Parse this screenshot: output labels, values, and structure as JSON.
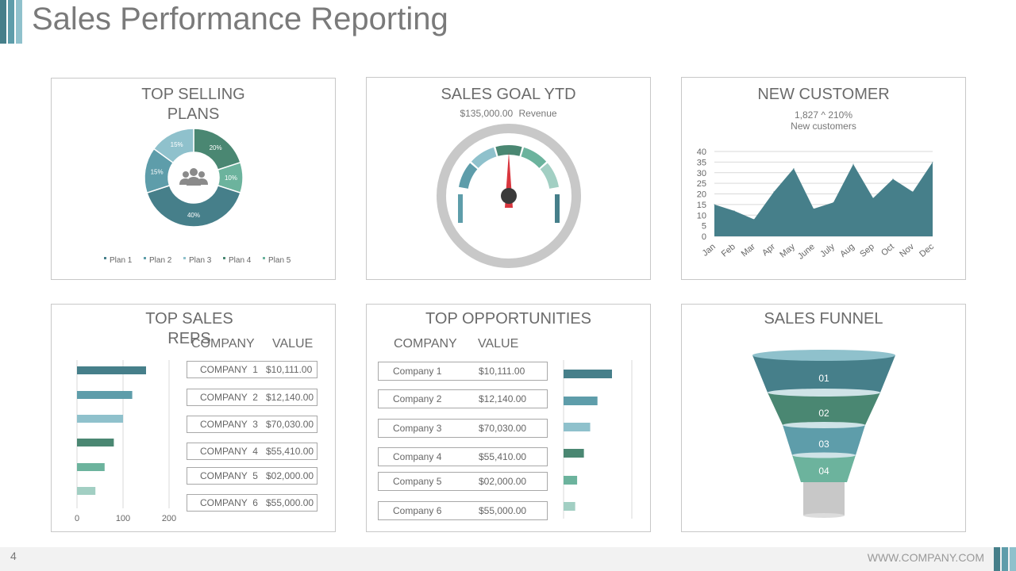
{
  "page": {
    "title": "Sales Performance Reporting",
    "page_number": "4",
    "footer_url": "WWW.COMPANY.COM"
  },
  "colors": {
    "teal_dark": "#467f8a",
    "teal_mid": "#5e9daa",
    "teal_light": "#8fc1cc",
    "green_dark": "#4a8772",
    "green_mid": "#6cb39d",
    "green_light": "#a2cfc3",
    "gray": "#c8c8c8",
    "needle": "#d9363e"
  },
  "panels": {
    "top_selling": {
      "title": "TOP SELLING\nPLANS"
    },
    "sales_goal": {
      "title": "SALES GOAL YTD",
      "amount": "$135,000.00",
      "amount_label": "Revenue"
    },
    "new_customer": {
      "title": "NEW CUSTOMER",
      "stat": "1,827 ^ 210%",
      "stat_label": "New customers"
    },
    "top_sales_reps": {
      "title": "TOP SALES\nREPS",
      "col_company": "COMPANY",
      "col_value": "VALUE"
    },
    "top_opportunities": {
      "title": "TOP OPPORTUNITIES",
      "col_company": "COMPANY",
      "col_value": "VALUE"
    },
    "sales_funnel": {
      "title": "SALES FUNNEL"
    }
  },
  "chart_data": [
    {
      "id": "top_selling_plans",
      "type": "pie",
      "variant": "donut",
      "center_icon": "users-icon",
      "slices": [
        {
          "label": "Plan 4",
          "value": 20,
          "text": "20%",
          "color": "#4a8772"
        },
        {
          "label": "Plan 5",
          "value": 10,
          "text": "10%",
          "color": "#6cb39d"
        },
        {
          "label": "Plan 1",
          "value": 40,
          "text": "40%",
          "color": "#467f8a"
        },
        {
          "label": "Plan 2",
          "value": 15,
          "text": "15%",
          "color": "#5e9daa"
        },
        {
          "label": "Plan 3",
          "value": 15,
          "text": "15%",
          "color": "#8fc1cc"
        }
      ],
      "legend": [
        {
          "label": "Plan 1",
          "color": "#467f8a"
        },
        {
          "label": "Plan 2",
          "color": "#5e9daa"
        },
        {
          "label": "Plan 3",
          "color": "#8fc1cc"
        },
        {
          "label": "Plan 4",
          "color": "#4a8772"
        },
        {
          "label": "Plan 5",
          "color": "#6cb39d"
        }
      ],
      "legend_position": "bottom"
    },
    {
      "id": "sales_goal_gauge",
      "type": "gauge",
      "segments": [
        "#5e9daa",
        "#8fc1cc",
        "#4a8772",
        "#6cb39d",
        "#a2cfc3"
      ],
      "needle_fraction": 0.5
    },
    {
      "id": "new_customers",
      "type": "area",
      "categories": [
        "Jan",
        "Feb",
        "Mar",
        "Apr",
        "May",
        "June",
        "July",
        "Aug",
        "Sep",
        "Oct",
        "Nov",
        "Dec"
      ],
      "values": [
        15,
        12,
        8,
        21,
        32,
        13,
        16,
        34,
        18,
        27,
        21,
        35
      ],
      "ylim": [
        0,
        40
      ],
      "yticks": [
        0,
        5,
        10,
        15,
        20,
        25,
        30,
        35,
        40
      ],
      "grid": true
    },
    {
      "id": "top_sales_reps",
      "type": "bar",
      "orientation": "horizontal",
      "categories": [
        "COMPANY  1",
        "COMPANY  2",
        "COMPANY  3",
        "COMPANY  4",
        "COMPANY  5",
        "COMPANY  6"
      ],
      "values": [
        150,
        120,
        100,
        80,
        60,
        40
      ],
      "value_labels": [
        "$10,111.00",
        "$12,140.00",
        "$70,030.00",
        "$55,410.00",
        "$02,000.00",
        "$55,000.00"
      ],
      "bar_colors": [
        "#467f8a",
        "#5e9daa",
        "#8fc1cc",
        "#4a8772",
        "#6cb39d",
        "#a2cfc3"
      ],
      "xlim": [
        0,
        200
      ],
      "xticks": [
        0,
        100,
        200
      ]
    },
    {
      "id": "top_opportunities",
      "type": "bar",
      "orientation": "horizontal",
      "categories": [
        "Company 1",
        "Company 2",
        "Company 3",
        "Company 4",
        "Company 5",
        "Company 6"
      ],
      "values": [
        100,
        70,
        55,
        42,
        28,
        24
      ],
      "value_labels": [
        "$10,111.00",
        "$12,140.00",
        "$70,030.00",
        "$55,410.00",
        "$02,000.00",
        "$55,000.00"
      ],
      "bar_colors": [
        "#467f8a",
        "#5e9daa",
        "#8fc1cc",
        "#4a8772",
        "#6cb39d",
        "#a2cfc3"
      ]
    },
    {
      "id": "sales_funnel",
      "type": "funnel",
      "stages": [
        {
          "label": "01",
          "color": "#467f8a"
        },
        {
          "label": "02",
          "color": "#4a8772"
        },
        {
          "label": "03",
          "color": "#5e9daa"
        },
        {
          "label": "04",
          "color": "#6cb39d"
        }
      ],
      "stem_color": "#c8c8c8"
    }
  ]
}
